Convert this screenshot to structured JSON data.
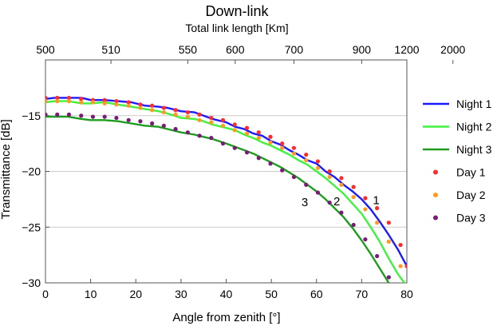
{
  "chart_data": {
    "type": "line",
    "title": "Down-link",
    "top_axis_label": "Total link length [Km]",
    "top_ticks": [
      {
        "label": "500",
        "x": 0
      },
      {
        "label": "510",
        "x": 14.5
      },
      {
        "label": "550",
        "x": 31.5
      },
      {
        "label": "600",
        "x": 42
      },
      {
        "label": "700",
        "x": 55
      },
      {
        "label": "900",
        "x": 70
      },
      {
        "label": "1200",
        "x": 80
      },
      {
        "label": "2000",
        "x": 90.2
      }
    ],
    "xlabel": "Angle from zenith [°]",
    "ylabel": "Transmittance [dB]",
    "xlim": [
      0,
      80
    ],
    "ylim": [
      -30,
      -10
    ],
    "xticks": [
      0,
      10,
      20,
      30,
      40,
      50,
      60,
      70,
      80
    ],
    "yticks": [
      -15,
      -20,
      -25,
      -30
    ],
    "grid": "horizontal",
    "legend_position": "right",
    "series": [
      {
        "name": "Night 1",
        "kind": "line",
        "color": "#1a1aff",
        "x": [
          0,
          2,
          5,
          8,
          10,
          13,
          16,
          19,
          22,
          25,
          27,
          30,
          33,
          35,
          37,
          40,
          42,
          44,
          46,
          48,
          50,
          52,
          54,
          56,
          58,
          60,
          62,
          64,
          66,
          68,
          70,
          72,
          74,
          76,
          78,
          80
        ],
        "y": [
          -13.5,
          -13.4,
          -13.4,
          -13.4,
          -13.6,
          -13.6,
          -13.7,
          -13.8,
          -14.1,
          -14.2,
          -14.3,
          -14.6,
          -14.7,
          -15.0,
          -15.3,
          -15.6,
          -16.0,
          -16.2,
          -16.6,
          -16.8,
          -17.3,
          -17.6,
          -18.1,
          -18.5,
          -19.0,
          -19.3,
          -20.0,
          -20.5,
          -21.2,
          -21.8,
          -22.5,
          -23.4,
          -24.5,
          -25.7,
          -27.0,
          -28.5
        ]
      },
      {
        "name": "Night 2",
        "kind": "line",
        "color": "#3ef23e",
        "x": [
          0,
          2,
          5,
          8,
          10,
          13,
          16,
          19,
          22,
          25,
          27,
          30,
          33,
          35,
          37,
          40,
          42,
          44,
          46,
          48,
          50,
          52,
          54,
          56,
          58,
          60,
          62,
          64,
          66,
          68,
          70,
          72,
          74,
          76,
          78,
          80
        ],
        "y": [
          -13.8,
          -13.7,
          -13.7,
          -13.9,
          -13.9,
          -13.8,
          -14.0,
          -14.2,
          -14.4,
          -14.6,
          -14.8,
          -15.2,
          -15.3,
          -15.5,
          -15.8,
          -16.1,
          -16.3,
          -16.7,
          -17.0,
          -17.4,
          -17.7,
          -18.1,
          -18.5,
          -19.0,
          -19.4,
          -20.0,
          -20.6,
          -21.3,
          -22.0,
          -22.9,
          -23.8,
          -25.0,
          -26.3,
          -27.8,
          -29.2,
          -30.3
        ]
      },
      {
        "name": "Night 3",
        "kind": "line",
        "color": "#1e9c1e",
        "x": [
          0,
          2,
          5,
          8,
          10,
          13,
          16,
          19,
          22,
          25,
          27,
          30,
          33,
          35,
          37,
          40,
          42,
          44,
          46,
          48,
          50,
          52,
          54,
          56,
          58,
          60,
          62,
          64,
          66,
          68,
          70,
          72,
          74,
          76,
          78
        ],
        "y": [
          -15.1,
          -15.1,
          -15.1,
          -15.3,
          -15.4,
          -15.4,
          -15.5,
          -15.7,
          -15.9,
          -16.0,
          -16.2,
          -16.5,
          -16.7,
          -16.9,
          -17.1,
          -17.5,
          -17.8,
          -18.1,
          -18.4,
          -18.8,
          -19.2,
          -19.6,
          -20.1,
          -20.6,
          -21.2,
          -21.8,
          -22.5,
          -23.3,
          -24.1,
          -25.1,
          -26.2,
          -27.4,
          -28.7,
          -30.0,
          -31.2
        ]
      },
      {
        "name": "Day 1",
        "kind": "points",
        "color": "#ff2a2a",
        "x": [
          0,
          2.6,
          5.2,
          7.9,
          10.5,
          13.1,
          15.7,
          18.4,
          21.0,
          23.6,
          26.2,
          28.8,
          31.5,
          34.1,
          36.7,
          39.3,
          41.9,
          44.6,
          47.2,
          49.8,
          52.4,
          55.0,
          57.7,
          60.3,
          62.9,
          65.5,
          68.2,
          70.8,
          73.4,
          76.0,
          78.6,
          80
        ],
        "y": [
          -13.4,
          -13.4,
          -13.4,
          -13.5,
          -13.6,
          -13.6,
          -13.7,
          -13.8,
          -14.0,
          -14.1,
          -14.3,
          -14.5,
          -14.7,
          -14.9,
          -15.2,
          -15.4,
          -15.8,
          -16.1,
          -16.5,
          -16.9,
          -17.5,
          -17.9,
          -18.5,
          -19.1,
          -20.0,
          -20.6,
          -21.4,
          -22.4,
          -23.3,
          -24.6,
          -26.6,
          -28.5
        ]
      },
      {
        "name": "Day 2",
        "kind": "points",
        "color": "#ff9922",
        "x": [
          0,
          2.6,
          5.2,
          7.9,
          10.5,
          13.1,
          15.7,
          18.4,
          21.0,
          23.6,
          26.2,
          28.8,
          31.5,
          34.1,
          36.7,
          39.3,
          41.9,
          44.6,
          47.2,
          49.8,
          52.4,
          55.0,
          57.7,
          60.3,
          62.9,
          65.5,
          68.2,
          70.8,
          73.4,
          76.0,
          78.6
        ],
        "y": [
          -13.7,
          -13.7,
          -13.7,
          -13.8,
          -13.8,
          -13.9,
          -14.0,
          -14.1,
          -14.3,
          -14.5,
          -14.7,
          -14.9,
          -15.1,
          -15.4,
          -15.6,
          -15.9,
          -16.3,
          -16.6,
          -17.0,
          -17.4,
          -17.9,
          -18.4,
          -19.0,
          -19.7,
          -20.5,
          -21.2,
          -22.3,
          -23.4,
          -24.6,
          -26.3,
          -28.5
        ]
      },
      {
        "name": "Day 3",
        "kind": "points",
        "color": "#7a1a7a",
        "x": [
          0,
          2.6,
          5.2,
          7.9,
          10.5,
          13.1,
          15.7,
          18.4,
          21.0,
          23.6,
          26.2,
          28.8,
          31.5,
          34.1,
          36.7,
          39.3,
          41.9,
          44.6,
          47.2,
          49.8,
          52.4,
          55.0,
          57.7,
          60.3,
          62.9,
          65.5,
          68.2,
          70.8,
          73.4,
          76.0
        ],
        "y": [
          -14.9,
          -14.9,
          -14.9,
          -15.0,
          -15.1,
          -15.1,
          -15.2,
          -15.4,
          -15.5,
          -15.7,
          -15.9,
          -16.2,
          -16.5,
          -16.8,
          -17.0,
          -17.5,
          -17.9,
          -18.3,
          -18.8,
          -19.3,
          -19.9,
          -20.5,
          -21.2,
          -21.9,
          -22.8,
          -23.7,
          -24.8,
          -26.1,
          -27.6,
          -29.5
        ]
      }
    ],
    "annotations": [
      {
        "text": "1",
        "x": 73.2,
        "y": -22.5
      },
      {
        "text": "2",
        "x": 64.5,
        "y": -22.6
      },
      {
        "text": "3",
        "x": 57.4,
        "y": -22.7
      }
    ]
  }
}
